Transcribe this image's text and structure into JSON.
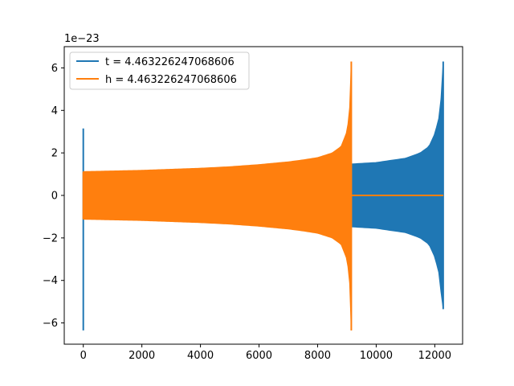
{
  "chart_data": {
    "type": "line",
    "title": "",
    "xlabel": "",
    "ylabel": "",
    "y_offset_label": "1e−23",
    "xlim": [
      -650,
      12950
    ],
    "ylim": [
      -7,
      7
    ],
    "x_ticks": [
      0,
      2000,
      4000,
      6000,
      8000,
      10000,
      12000
    ],
    "x_tick_labels": [
      "0",
      "2000",
      "4000",
      "6000",
      "8000",
      "10000",
      "12000"
    ],
    "y_ticks": [
      -6,
      -4,
      -2,
      0,
      2,
      4,
      6
    ],
    "y_tick_labels": [
      "−6",
      "−4",
      "−2",
      "0",
      "2",
      "4",
      "6"
    ],
    "grid": false,
    "legend_position": "top-left",
    "series": [
      {
        "name": "t = 4.463226247068606",
        "color": "#1f77b4",
        "spike_start": {
          "x": 0,
          "max": 3.15,
          "min": -6.35
        },
        "chirp_end_x": 12288,
        "envelope": [
          [
            0,
            1.1
          ],
          [
            2000,
            1.15
          ],
          [
            4000,
            1.25
          ],
          [
            6000,
            1.38
          ],
          [
            8000,
            1.45
          ],
          [
            9150,
            1.48
          ],
          [
            10000,
            1.55
          ],
          [
            11000,
            1.75
          ],
          [
            11500,
            2.0
          ],
          [
            11800,
            2.3
          ],
          [
            12000,
            2.9
          ],
          [
            12150,
            3.7
          ],
          [
            12230,
            4.8
          ],
          [
            12270,
            6.3
          ]
        ],
        "envelope_neg_end": -5.35
      },
      {
        "name": "h = 4.463226247068606",
        "color": "#ff7f0e",
        "spike_start": {
          "x": 0,
          "max": 1.1,
          "min": -1.1
        },
        "chirp_end_x": 9150,
        "envelope": [
          [
            0,
            1.12
          ],
          [
            1000,
            1.15
          ],
          [
            2000,
            1.18
          ],
          [
            3000,
            1.23
          ],
          [
            4000,
            1.28
          ],
          [
            5000,
            1.35
          ],
          [
            6000,
            1.45
          ],
          [
            7000,
            1.58
          ],
          [
            7500,
            1.67
          ],
          [
            8000,
            1.78
          ],
          [
            8500,
            2.0
          ],
          [
            8800,
            2.3
          ],
          [
            9000,
            3.0
          ],
          [
            9080,
            3.8
          ],
          [
            9120,
            4.8
          ],
          [
            9145,
            6.3
          ]
        ],
        "envelope_neg_end": -6.35,
        "flat_until_x": 12288
      }
    ]
  }
}
